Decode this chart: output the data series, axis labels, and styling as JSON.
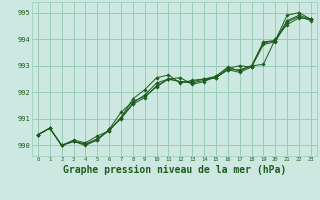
{
  "background_color": "#cce8e0",
  "plot_bg_color": "#cce8e0",
  "grid_color": "#99ccbb",
  "line_color": "#1e5c1e",
  "marker_color": "#1e5c1e",
  "xlabel": "Graphe pression niveau de la mer (hPa)",
  "xlabel_fontsize": 7.0,
  "xlim": [
    -0.5,
    23.5
  ],
  "ylim": [
    989.6,
    995.4
  ],
  "yticks": [
    990,
    991,
    992,
    993,
    994,
    995
  ],
  "xticks": [
    0,
    1,
    2,
    3,
    4,
    5,
    6,
    7,
    8,
    9,
    10,
    11,
    12,
    13,
    14,
    15,
    16,
    17,
    18,
    19,
    20,
    21,
    22,
    23
  ],
  "series": [
    {
      "x": [
        0,
        1,
        2,
        3,
        4,
        5,
        6,
        7,
        8,
        9,
        10,
        11,
        12,
        13,
        14,
        15,
        16,
        17,
        18,
        19,
        20,
        21,
        22,
        23
      ],
      "y": [
        990.4,
        990.65,
        990.0,
        990.2,
        990.1,
        990.35,
        990.55,
        991.05,
        991.75,
        992.1,
        992.55,
        992.65,
        992.35,
        992.45,
        992.5,
        992.6,
        992.9,
        993.0,
        992.95,
        993.85,
        993.95,
        994.9,
        995.0,
        994.75
      ]
    },
    {
      "x": [
        0,
        1,
        2,
        3,
        4,
        5,
        6,
        7,
        8,
        9,
        10,
        11,
        12,
        13,
        14,
        15,
        16,
        17,
        18,
        19,
        20,
        21,
        22,
        23
      ],
      "y": [
        990.4,
        990.65,
        990.0,
        990.15,
        990.05,
        990.2,
        990.6,
        991.25,
        991.65,
        991.85,
        992.2,
        992.5,
        992.55,
        992.3,
        992.4,
        992.6,
        992.95,
        992.8,
        993.0,
        993.05,
        994.0,
        994.55,
        994.8,
        994.75
      ]
    },
    {
      "x": [
        0,
        1,
        2,
        3,
        4,
        5,
        6,
        7,
        8,
        9,
        10,
        11,
        12,
        13,
        14,
        15,
        16,
        17,
        18,
        19,
        20,
        21,
        22,
        23
      ],
      "y": [
        990.4,
        990.65,
        990.0,
        990.15,
        990.05,
        990.25,
        990.55,
        991.05,
        991.6,
        991.9,
        992.35,
        992.5,
        992.4,
        992.4,
        992.5,
        992.55,
        992.85,
        992.85,
        993.0,
        993.9,
        993.95,
        994.7,
        994.9,
        994.75
      ]
    },
    {
      "x": [
        0,
        1,
        2,
        3,
        4,
        5,
        6,
        7,
        8,
        9,
        10,
        11,
        12,
        13,
        14,
        15,
        16,
        17,
        18,
        19,
        20,
        21,
        22,
        23
      ],
      "y": [
        990.4,
        990.65,
        990.0,
        990.15,
        990.0,
        990.2,
        990.6,
        991.0,
        991.55,
        991.8,
        992.25,
        992.5,
        992.4,
        992.35,
        992.45,
        992.55,
        992.85,
        992.75,
        992.95,
        993.8,
        993.9,
        994.65,
        994.85,
        994.7
      ]
    }
  ]
}
